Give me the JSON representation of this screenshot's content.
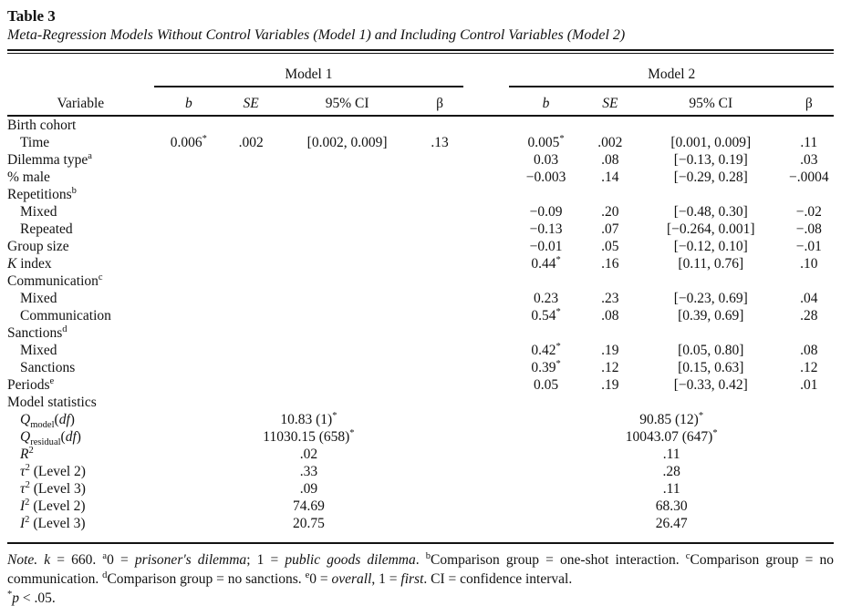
{
  "page": {
    "title": "Table 3",
    "subtitle": "Meta-Regression Models Without Control Variables (Model 1) and Including Control Variables (Model 2)"
  },
  "table": {
    "groups": [
      "Model 1",
      "Model 2"
    ],
    "header": {
      "variable": "Variable",
      "cols": [
        "~b~",
        "~SE~",
        "95% CI",
        "β"
      ]
    },
    "rows": [
      {
        "label": "Birth cohort",
        "indent": 0,
        "cells": [
          "",
          "",
          "",
          "",
          "",
          "",
          "",
          ""
        ]
      },
      {
        "label": "Time",
        "indent": 1,
        "cells": [
          "0.006^{*}",
          ".002",
          "[0.002, 0.009]",
          ".13",
          "0.005^{*}",
          ".002",
          "[0.001, 0.009]",
          ".11"
        ]
      },
      {
        "label": "Dilemma type^{a}",
        "indent": 0,
        "cells": [
          "",
          "",
          "",
          "",
          "0.03",
          ".08",
          "[−0.13, 0.19]",
          ".03"
        ]
      },
      {
        "label": "% male",
        "indent": 0,
        "cells": [
          "",
          "",
          "",
          "",
          "−0.003",
          ".14",
          "[−0.29, 0.28]",
          "−.0004"
        ]
      },
      {
        "label": "Repetitions^{b}",
        "indent": 0,
        "cells": [
          "",
          "",
          "",
          "",
          "",
          "",
          "",
          ""
        ]
      },
      {
        "label": "Mixed",
        "indent": 1,
        "cells": [
          "",
          "",
          "",
          "",
          "−0.09",
          ".20",
          "[−0.48, 0.30]",
          "−.02"
        ]
      },
      {
        "label": "Repeated",
        "indent": 1,
        "cells": [
          "",
          "",
          "",
          "",
          "−0.13",
          ".07",
          "[−0.264, 0.001]",
          "−.08"
        ]
      },
      {
        "label": "Group size",
        "indent": 0,
        "cells": [
          "",
          "",
          "",
          "",
          "−0.01",
          ".05",
          "[−0.12, 0.10]",
          "−.01"
        ]
      },
      {
        "label": "~K~ index",
        "indent": 0,
        "cells": [
          "",
          "",
          "",
          "",
          "0.44^{*}",
          ".16",
          "[0.11, 0.76]",
          ".10"
        ]
      },
      {
        "label": "Communication^{c}",
        "indent": 0,
        "cells": [
          "",
          "",
          "",
          "",
          "",
          "",
          "",
          ""
        ]
      },
      {
        "label": "Mixed",
        "indent": 1,
        "cells": [
          "",
          "",
          "",
          "",
          "0.23",
          ".23",
          "[−0.23, 0.69]",
          ".04"
        ]
      },
      {
        "label": "Communication",
        "indent": 1,
        "cells": [
          "",
          "",
          "",
          "",
          "0.54^{*}",
          ".08",
          "[0.39, 0.69]",
          ".28"
        ]
      },
      {
        "label": "Sanctions^{d}",
        "indent": 0,
        "cells": [
          "",
          "",
          "",
          "",
          "",
          "",
          "",
          ""
        ]
      },
      {
        "label": "Mixed",
        "indent": 1,
        "cells": [
          "",
          "",
          "",
          "",
          "0.42^{*}",
          ".19",
          "[0.05, 0.80]",
          ".08"
        ]
      },
      {
        "label": "Sanctions",
        "indent": 1,
        "cells": [
          "",
          "",
          "",
          "",
          "0.39^{*}",
          ".12",
          "[0.15, 0.63]",
          ".12"
        ]
      },
      {
        "label": "Periods^{e}",
        "indent": 0,
        "cells": [
          "",
          "",
          "",
          "",
          "0.05",
          ".19",
          "[−0.33, 0.42]",
          ".01"
        ]
      },
      {
        "label": "Model statistics",
        "indent": 0,
        "cells": [
          "",
          "",
          "",
          "",
          "",
          "",
          "",
          ""
        ]
      },
      {
        "label": "~Q~_{model}(~df~)",
        "indent": 1,
        "stat": true,
        "m1": "10.83 (1)^{*}",
        "m2": "90.85 (12)^{*}"
      },
      {
        "label": "~Q~_{residual}(~df~)",
        "indent": 1,
        "stat": true,
        "m1": "11030.15 (658)^{*}",
        "m2": "10043.07 (647)^{*}"
      },
      {
        "label": "~R~^{2}",
        "indent": 1,
        "stat": true,
        "m1": ".02",
        "m2": ".11"
      },
      {
        "label": "~τ~^{2} (Level 2)",
        "indent": 1,
        "stat": true,
        "m1": ".33",
        "m2": ".28"
      },
      {
        "label": "~τ~^{2} (Level 3)",
        "indent": 1,
        "stat": true,
        "m1": ".09",
        "m2": ".11"
      },
      {
        "label": "~I~^{2} (Level 2)",
        "indent": 1,
        "stat": true,
        "m1": "74.69",
        "m2": "68.30"
      },
      {
        "label": "~I~^{2} (Level 3)",
        "indent": 1,
        "stat": true,
        "m1": "20.75",
        "m2": "26.47"
      }
    ],
    "note": "~Note.~  ~k~ = 660.  ^{a}0 = ~prisoner's dilemma~; 1 = ~public goods dilemma~.  ^{b}Comparison group = one-shot interaction.  ^{c}Comparison group = no communication.  ^{d}Comparison group = no sanctions.  ^{e}0 = ~overall~, 1 = ~first~. CI = confidence interval.",
    "sig_note": "^{*}~p~ < .05."
  }
}
